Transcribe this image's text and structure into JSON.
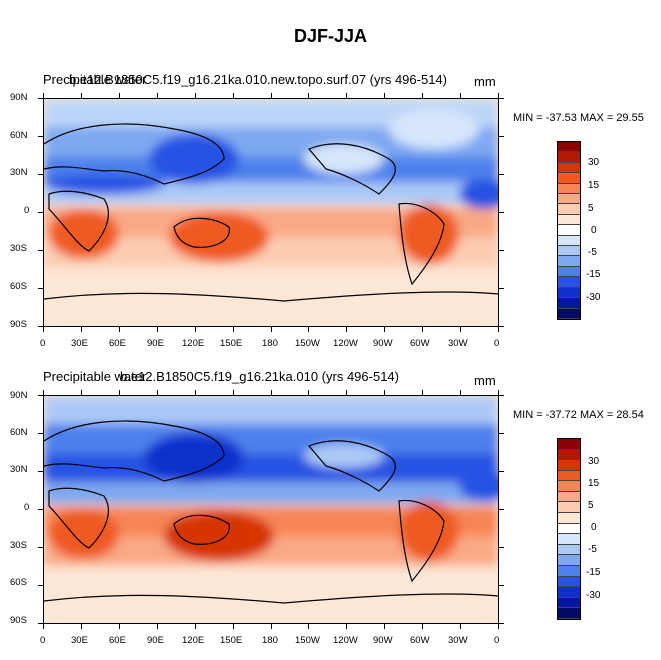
{
  "main_title": "DJF-JJA",
  "panels": [
    {
      "title": "Precipitable water",
      "title_overlap": "b.e12.B1850C5.f19_g16.21ka.010.new.topo.surf.07 (yrs 496-514)",
      "units": "mm",
      "min_max": "MIN = -37.53 MAX =  29.55"
    },
    {
      "title": "Precipitable water",
      "title_overlap": "b.e12.B1850C5.f19_g16.21ka.010 (yrs 496-514)",
      "units": "mm",
      "min_max": "MIN = -37.72 MAX =  28.54"
    }
  ],
  "axes": {
    "lat_labels": [
      "90N",
      "60N",
      "30N",
      "0",
      "30S",
      "60S",
      "90S"
    ],
    "lon_labels": [
      "0",
      "30E",
      "60E",
      "90E",
      "120E",
      "150E",
      "180",
      "150W",
      "120W",
      "90W",
      "60W",
      "30W",
      "0"
    ]
  },
  "colorbar": {
    "labels": [
      "30",
      "15",
      "5",
      "0",
      "-5",
      "-15",
      "-30"
    ],
    "colors": [
      "#8b0000",
      "#b11a00",
      "#d63500",
      "#ef5a22",
      "#f58555",
      "#f9a985",
      "#fcccb0",
      "#fde7d6",
      "#ffffff",
      "#d6e6fb",
      "#abc9f6",
      "#7fa8f1",
      "#4e80ec",
      "#2752e3",
      "#0d30cc",
      "#03179f",
      "#000a66"
    ]
  }
}
